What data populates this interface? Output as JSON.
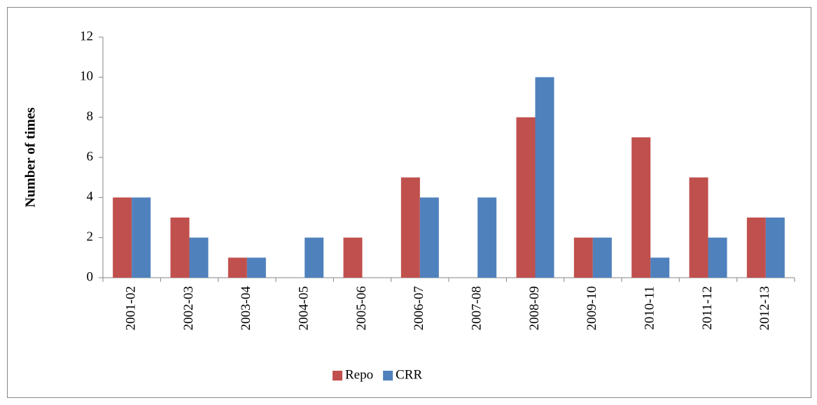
{
  "chart_data": {
    "type": "bar",
    "y_label": "Number of times",
    "categories": [
      "2001-02",
      "2002-03",
      "2003-04",
      "2004-05",
      "2005-06",
      "2006-07",
      "2007-08",
      "2008-09",
      "2009-10",
      "2010-11",
      "2011-12",
      "2012-13"
    ],
    "series": [
      {
        "name": "Repo",
        "color": "#c0504d",
        "values": [
          4,
          3,
          1,
          0,
          2,
          5,
          0,
          8,
          2,
          7,
          5,
          3
        ]
      },
      {
        "name": "CRR",
        "color": "#4f81bd",
        "values": [
          4,
          2,
          1,
          2,
          0,
          4,
          4,
          10,
          2,
          1,
          2,
          3
        ]
      }
    ],
    "ylim": [
      0,
      12
    ],
    "yticks": [
      0,
      2,
      4,
      6,
      8,
      10,
      12
    ],
    "grid": false,
    "legend": "bottom"
  }
}
